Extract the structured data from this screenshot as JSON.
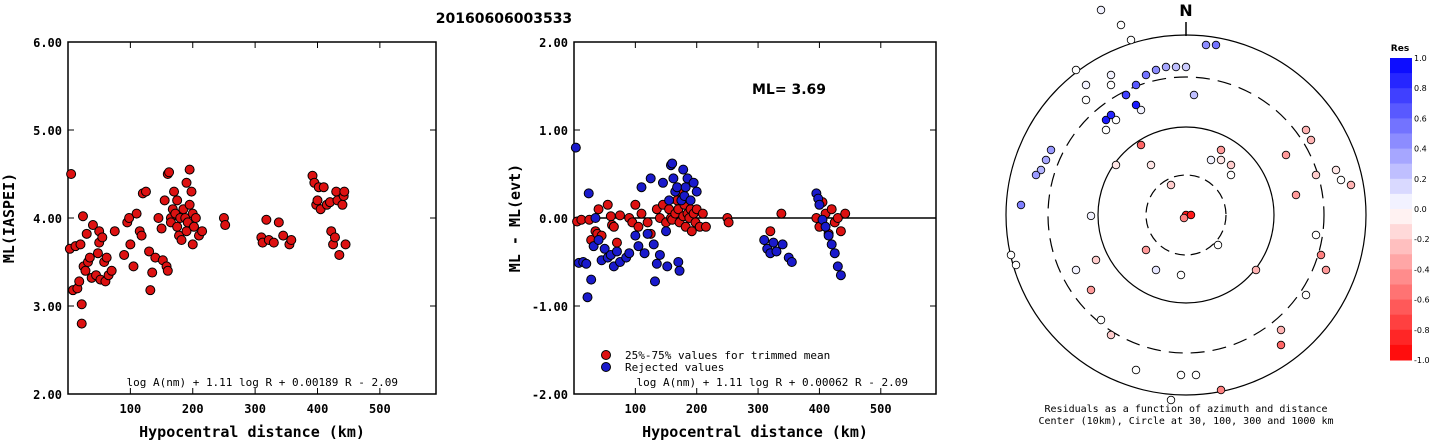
{
  "title": "20160606003533",
  "chart_data": [
    {
      "type": "scatter",
      "ylabel": "ML(IASPEI)",
      "xlabel": "Hypocentral distance (km)",
      "xlim": [
        0,
        590
      ],
      "ylim": [
        2.0,
        6.0
      ],
      "x_ticks": [
        "100",
        "200",
        "300",
        "400",
        "500"
      ],
      "y_ticks": [
        "2.00",
        "3.00",
        "4.00",
        "5.00",
        "6.00"
      ],
      "formula": "log A(nm) + 1.11 log R + 0.00189 R - 2.09",
      "color": "#dd1111",
      "points": [
        [
          3,
          3.65
        ],
        [
          5,
          4.5
        ],
        [
          8,
          3.18
        ],
        [
          12,
          3.68
        ],
        [
          15,
          3.2
        ],
        [
          18,
          3.28
        ],
        [
          20,
          3.7
        ],
        [
          22,
          3.02
        ],
        [
          22,
          2.8
        ],
        [
          24,
          4.02
        ],
        [
          25,
          3.45
        ],
        [
          28,
          3.4
        ],
        [
          30,
          3.82
        ],
        [
          32,
          3.5
        ],
        [
          35,
          3.55
        ],
        [
          38,
          3.32
        ],
        [
          40,
          3.92
        ],
        [
          45,
          3.35
        ],
        [
          48,
          3.6
        ],
        [
          50,
          3.85
        ],
        [
          50,
          3.72
        ],
        [
          52,
          3.3
        ],
        [
          55,
          3.78
        ],
        [
          58,
          3.5
        ],
        [
          60,
          3.28
        ],
        [
          62,
          3.55
        ],
        [
          65,
          3.35
        ],
        [
          70,
          3.4
        ],
        [
          75,
          3.85
        ],
        [
          90,
          3.58
        ],
        [
          95,
          3.95
        ],
        [
          98,
          4.0
        ],
        [
          100,
          3.7
        ],
        [
          105,
          3.45
        ],
        [
          110,
          4.05
        ],
        [
          115,
          3.85
        ],
        [
          118,
          3.8
        ],
        [
          120,
          4.28
        ],
        [
          125,
          4.3
        ],
        [
          130,
          3.62
        ],
        [
          132,
          3.18
        ],
        [
          135,
          3.38
        ],
        [
          140,
          3.55
        ],
        [
          145,
          4.0
        ],
        [
          150,
          3.88
        ],
        [
          152,
          3.52
        ],
        [
          155,
          4.2
        ],
        [
          158,
          3.45
        ],
        [
          160,
          3.4
        ],
        [
          160,
          4.5
        ],
        [
          162,
          4.52
        ],
        [
          165,
          4.0
        ],
        [
          165,
          3.95
        ],
        [
          168,
          4.1
        ],
        [
          170,
          4.3
        ],
        [
          172,
          4.05
        ],
        [
          175,
          3.9
        ],
        [
          175,
          4.2
        ],
        [
          178,
          3.8
        ],
        [
          180,
          4.0
        ],
        [
          182,
          3.75
        ],
        [
          185,
          4.1
        ],
        [
          188,
          4.0
        ],
        [
          190,
          3.85
        ],
        [
          190,
          4.4
        ],
        [
          192,
          3.95
        ],
        [
          195,
          4.55
        ],
        [
          195,
          4.15
        ],
        [
          198,
          4.3
        ],
        [
          200,
          4.05
        ],
        [
          200,
          3.7
        ],
        [
          202,
          3.9
        ],
        [
          205,
          4.0
        ],
        [
          210,
          3.8
        ],
        [
          215,
          3.85
        ],
        [
          250,
          4.0
        ],
        [
          252,
          3.92
        ],
        [
          310,
          3.78
        ],
        [
          312,
          3.72
        ],
        [
          318,
          3.98
        ],
        [
          322,
          3.75
        ],
        [
          330,
          3.72
        ],
        [
          338,
          3.95
        ],
        [
          345,
          3.8
        ],
        [
          355,
          3.7
        ],
        [
          358,
          3.75
        ],
        [
          392,
          4.48
        ],
        [
          395,
          4.4
        ],
        [
          398,
          4.15
        ],
        [
          400,
          4.2
        ],
        [
          402,
          4.35
        ],
        [
          405,
          4.1
        ],
        [
          410,
          4.35
        ],
        [
          415,
          4.15
        ],
        [
          420,
          4.18
        ],
        [
          422,
          3.85
        ],
        [
          425,
          3.7
        ],
        [
          428,
          3.78
        ],
        [
          430,
          4.3
        ],
        [
          432,
          4.2
        ],
        [
          435,
          3.58
        ],
        [
          440,
          4.15
        ],
        [
          442,
          4.25
        ],
        [
          443,
          4.3
        ],
        [
          445,
          3.7
        ]
      ]
    },
    {
      "type": "scatter",
      "ylabel": "ML - ML(evt)",
      "xlabel": "Hypocentral distance (km)",
      "xlim": [
        0,
        590
      ],
      "ylim": [
        -2.0,
        2.0
      ],
      "x_ticks": [
        "100",
        "200",
        "300",
        "400",
        "500"
      ],
      "y_ticks": [
        "-2.00",
        "-1.00",
        "0.00",
        "1.00",
        "2.00"
      ],
      "ml_label": "ML= 3.69",
      "formula": "log A(nm) + 1.11 log R + 0.00062 R - 2.09",
      "legend": [
        {
          "label": "25%-75% values for trimmed mean",
          "color": "#dd1111"
        },
        {
          "label": "Rejected values",
          "color": "#1a1acc"
        }
      ],
      "red_points": [
        [
          5,
          -0.04
        ],
        [
          12,
          -0.02
        ],
        [
          25,
          -0.02
        ],
        [
          28,
          -0.25
        ],
        [
          35,
          -0.15
        ],
        [
          38,
          -0.18
        ],
        [
          40,
          0.1
        ],
        [
          45,
          -0.2
        ],
        [
          55,
          0.15
        ],
        [
          60,
          0.02
        ],
        [
          62,
          -0.08
        ],
        [
          65,
          -0.1
        ],
        [
          70,
          -0.28
        ],
        [
          75,
          0.03
        ],
        [
          90,
          0.0
        ],
        [
          95,
          -0.05
        ],
        [
          100,
          0.15
        ],
        [
          105,
          -0.1
        ],
        [
          110,
          0.05
        ],
        [
          120,
          -0.05
        ],
        [
          125,
          -0.18
        ],
        [
          135,
          0.1
        ],
        [
          140,
          0.0
        ],
        [
          145,
          0.15
        ],
        [
          150,
          -0.05
        ],
        [
          155,
          0.1
        ],
        [
          158,
          0.0
        ],
        [
          160,
          -0.02
        ],
        [
          165,
          0.05
        ],
        [
          168,
          0.2
        ],
        [
          170,
          0.1
        ],
        [
          172,
          -0.05
        ],
        [
          175,
          0.3
        ],
        [
          178,
          0.02
        ],
        [
          180,
          0.15
        ],
        [
          182,
          -0.1
        ],
        [
          185,
          0.05
        ],
        [
          188,
          0.0
        ],
        [
          190,
          0.1
        ],
        [
          192,
          -0.15
        ],
        [
          195,
          0.05
        ],
        [
          198,
          -0.05
        ],
        [
          200,
          0.1
        ],
        [
          205,
          -0.1
        ],
        [
          210,
          0.05
        ],
        [
          215,
          -0.1
        ],
        [
          250,
          0.0
        ],
        [
          252,
          -0.05
        ],
        [
          320,
          -0.15
        ],
        [
          338,
          0.05
        ],
        [
          395,
          0.0
        ],
        [
          400,
          -0.1
        ],
        [
          405,
          0.18
        ],
        [
          410,
          0.05
        ],
        [
          415,
          -0.18
        ],
        [
          420,
          0.1
        ],
        [
          425,
          -0.05
        ],
        [
          430,
          0.0
        ],
        [
          435,
          -0.15
        ],
        [
          442,
          0.05
        ]
      ],
      "blue_points": [
        [
          3,
          0.8
        ],
        [
          8,
          -0.51
        ],
        [
          15,
          -0.5
        ],
        [
          20,
          -0.52
        ],
        [
          22,
          -0.9
        ],
        [
          24,
          0.28
        ],
        [
          28,
          -0.7
        ],
        [
          32,
          -0.32
        ],
        [
          35,
          0.0
        ],
        [
          40,
          -0.25
        ],
        [
          45,
          -0.48
        ],
        [
          50,
          -0.35
        ],
        [
          55,
          -0.45
        ],
        [
          60,
          -0.42
        ],
        [
          65,
          -0.55
        ],
        [
          70,
          -0.38
        ],
        [
          75,
          -0.5
        ],
        [
          85,
          -0.45
        ],
        [
          90,
          -0.4
        ],
        [
          100,
          -0.2
        ],
        [
          105,
          -0.32
        ],
        [
          110,
          0.35
        ],
        [
          115,
          -0.4
        ],
        [
          120,
          -0.18
        ],
        [
          125,
          0.45
        ],
        [
          130,
          -0.3
        ],
        [
          132,
          -0.72
        ],
        [
          135,
          -0.52
        ],
        [
          140,
          -0.42
        ],
        [
          145,
          0.4
        ],
        [
          150,
          -0.15
        ],
        [
          152,
          -0.55
        ],
        [
          155,
          0.2
        ],
        [
          158,
          0.6
        ],
        [
          160,
          0.62
        ],
        [
          162,
          0.45
        ],
        [
          165,
          0.3
        ],
        [
          168,
          0.35
        ],
        [
          170,
          -0.5
        ],
        [
          172,
          -0.6
        ],
        [
          175,
          0.2
        ],
        [
          178,
          0.55
        ],
        [
          180,
          0.25
        ],
        [
          182,
          0.35
        ],
        [
          185,
          0.45
        ],
        [
          190,
          0.2
        ],
        [
          195,
          0.4
        ],
        [
          200,
          0.3
        ],
        [
          310,
          -0.25
        ],
        [
          315,
          -0.35
        ],
        [
          320,
          -0.4
        ],
        [
          325,
          -0.28
        ],
        [
          330,
          -0.38
        ],
        [
          340,
          -0.3
        ],
        [
          350,
          -0.45
        ],
        [
          355,
          -0.5
        ],
        [
          395,
          0.28
        ],
        [
          398,
          0.22
        ],
        [
          400,
          0.15
        ],
        [
          405,
          -0.02
        ],
        [
          410,
          -0.1
        ],
        [
          415,
          -0.2
        ],
        [
          420,
          -0.3
        ],
        [
          425,
          -0.4
        ],
        [
          430,
          -0.55
        ],
        [
          435,
          -0.65
        ]
      ]
    },
    {
      "type": "scatter",
      "subtype": "polar-residuals",
      "north_label": "N",
      "caption_line1": "Residuals as a function of azimuth and distance",
      "caption_line2": "Center (10km), Circle at 30, 100, 300 and 1000 km",
      "colorbar_title": "Res",
      "colorbar_ticks": [
        "1.0",
        "0.8",
        "0.6",
        "0.4",
        "0.2",
        "0.0",
        "-0.2",
        "-0.4",
        "-0.6",
        "-0.8",
        "-1.0"
      ],
      "points": [
        [
          0,
          0,
          -0.9
        ],
        [
          5,
          0,
          -0.9
        ],
        [
          -2,
          3,
          -0.5
        ],
        [
          -45,
          -70,
          -0.6
        ],
        [
          -45,
          -105,
          0.05
        ],
        [
          25,
          -55,
          0.05
        ],
        [
          -15,
          -30,
          -0.2
        ],
        [
          -40,
          35,
          -0.4
        ],
        [
          -5,
          60,
          0.0
        ],
        [
          -30,
          55,
          0.1
        ],
        [
          35,
          -55,
          -0.1
        ],
        [
          -60,
          -120,
          -0.4
        ],
        [
          -70,
          -95,
          0.0
        ],
        [
          -75,
          -140,
          0.05
        ],
        [
          -70,
          -50,
          -0.1
        ],
        [
          -55,
          -175,
          0.0
        ],
        [
          -65,
          -190,
          0.0
        ],
        [
          -85,
          -205,
          0.05
        ],
        [
          -80,
          -85,
          0.0
        ],
        [
          -50,
          -110,
          0.9
        ],
        [
          -80,
          -95,
          0.9
        ],
        [
          -75,
          -100,
          0.85
        ],
        [
          -60,
          -120,
          0.75
        ],
        [
          -50,
          -130,
          0.65
        ],
        [
          -40,
          -140,
          0.55
        ],
        [
          -30,
          -145,
          0.45
        ],
        [
          -20,
          -148,
          0.35
        ],
        [
          -10,
          -148,
          0.25
        ],
        [
          0,
          -148,
          0.2
        ],
        [
          8,
          -120,
          0.25
        ],
        [
          30,
          -170,
          0.55
        ],
        [
          20,
          -170,
          0.45
        ],
        [
          -100,
          -130,
          0.05
        ],
        [
          -100,
          -115,
          0.0
        ],
        [
          -110,
          -145,
          0.0
        ],
        [
          -135,
          -65,
          0.4
        ],
        [
          -140,
          -55,
          0.35
        ],
        [
          -145,
          -45,
          0.3
        ],
        [
          -150,
          -40,
          0.4
        ],
        [
          -165,
          -10,
          0.5
        ],
        [
          -95,
          0.9,
          0.05
        ],
        [
          -170,
          50,
          0.0
        ],
        [
          -175,
          40,
          0.0
        ],
        [
          -110,
          55,
          0.05
        ],
        [
          -90,
          45,
          -0.2
        ],
        [
          -95,
          75,
          -0.4
        ],
        [
          -85,
          105,
          0.0
        ],
        [
          -75,
          120,
          -0.2
        ],
        [
          -50,
          155,
          0.0
        ],
        [
          -15,
          185,
          0.0
        ],
        [
          -5,
          160,
          0.0
        ],
        [
          10,
          160,
          0.0
        ],
        [
          35,
          175,
          -0.5
        ],
        [
          95,
          115,
          -0.3
        ],
        [
          70,
          55,
          -0.3
        ],
        [
          120,
          -85,
          -0.3
        ],
        [
          125,
          -75,
          -0.3
        ],
        [
          100,
          -60,
          -0.4
        ],
        [
          110,
          -20,
          -0.4
        ],
        [
          130,
          -40,
          -0.2
        ],
        [
          150,
          -45,
          -0.1
        ],
        [
          155,
          -35,
          0.0
        ],
        [
          165,
          -30,
          -0.3
        ],
        [
          130,
          20,
          0.0
        ],
        [
          135,
          40,
          -0.5
        ],
        [
          140,
          55,
          -0.4
        ],
        [
          120,
          80,
          0.0
        ],
        [
          95,
          130,
          -0.6
        ],
        [
          32,
          30,
          0.0
        ],
        [
          35,
          -65,
          -0.4
        ],
        [
          45,
          -50,
          -0.2
        ],
        [
          45,
          -40,
          0.0
        ],
        [
          -35,
          -50,
          -0.1
        ],
        [
          -75,
          -130,
          0.0
        ]
      ]
    }
  ]
}
